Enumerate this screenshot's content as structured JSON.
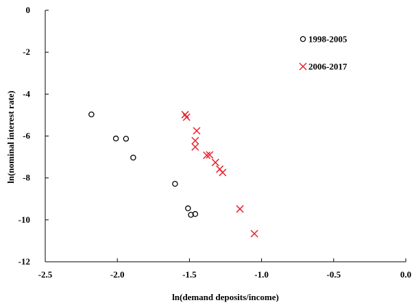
{
  "chart_data": {
    "type": "scatter",
    "title": "",
    "xlabel": "ln(demand deposits/income)",
    "ylabel": "ln(nominal interest rate)",
    "xlim": [
      -2.5,
      0.0
    ],
    "ylim": [
      -12,
      0
    ],
    "x_ticks": [
      -2.5,
      -2.0,
      -1.5,
      -1.0,
      -0.5,
      0.0
    ],
    "x_tick_labels": [
      "-2.5",
      "-2.0",
      "-1.5",
      "-1.0",
      "-0.5",
      "0.0"
    ],
    "y_ticks": [
      0,
      -2,
      -4,
      -6,
      -8,
      -10,
      -12
    ],
    "y_tick_labels": [
      "0",
      "-2",
      "-4",
      "-6",
      "-8",
      "-10",
      "-12"
    ],
    "grid": false,
    "legend_position": "top-right",
    "series": [
      {
        "name": "1998-2005",
        "marker": "circle",
        "color": "#000000",
        "points": [
          [
            -2.18,
            -4.97
          ],
          [
            -2.01,
            -6.12
          ],
          [
            -1.94,
            -6.13
          ],
          [
            -1.89,
            -7.03
          ],
          [
            -1.6,
            -8.28
          ],
          [
            -1.51,
            -9.45
          ],
          [
            -1.49,
            -9.76
          ],
          [
            -1.46,
            -9.72
          ]
        ]
      },
      {
        "name": "2006-2017",
        "marker": "x",
        "color": "#e8202a",
        "points": [
          [
            -1.53,
            -4.98
          ],
          [
            -1.52,
            -5.1
          ],
          [
            -1.45,
            -5.75
          ],
          [
            -1.46,
            -6.22
          ],
          [
            -1.46,
            -6.52
          ],
          [
            -1.38,
            -6.92
          ],
          [
            -1.36,
            -6.9
          ],
          [
            -1.32,
            -7.26
          ],
          [
            -1.29,
            -7.58
          ],
          [
            -1.27,
            -7.74
          ],
          [
            -1.15,
            -9.48
          ],
          [
            -1.05,
            -10.66
          ]
        ]
      }
    ]
  }
}
